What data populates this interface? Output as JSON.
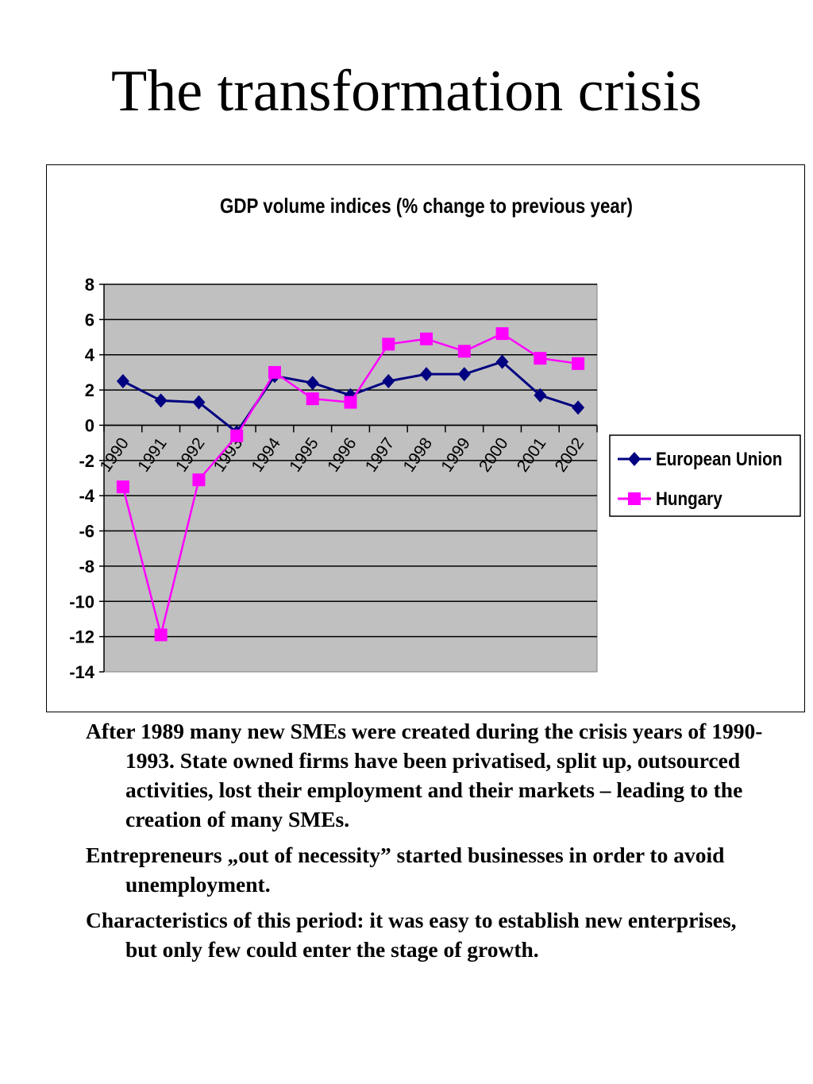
{
  "slide": {
    "title": "The transformation crisis",
    "paragraphs": [
      "After 1989 many new SMEs were created during the crisis years of 1990-1993. State owned firms have been privatised, split up, outsourced activities, lost  their employment and their markets – leading to the creation of many SMEs.",
      "Entrepreneurs „out of necessity” started businesses in order to avoid unemployment.",
      "Characteristics of this period: it was easy to establish new enterprises, but only few could enter the stage of growth."
    ]
  },
  "chart_data": {
    "type": "line",
    "title": "GDP volume indices (% change to previous year)",
    "xlabel": "",
    "ylabel": "",
    "categories": [
      "1990",
      "1991",
      "1992",
      "1993",
      "1994",
      "1995",
      "1996",
      "1997",
      "1998",
      "1999",
      "2000",
      "2001",
      "2002"
    ],
    "series": [
      {
        "name": "European Union",
        "color": "#000080",
        "marker": "diamond",
        "values": [
          2.5,
          1.4,
          1.3,
          -0.4,
          2.8,
          2.4,
          1.7,
          2.5,
          2.9,
          2.9,
          3.6,
          1.7,
          1.0
        ]
      },
      {
        "name": "Hungary",
        "color": "#FF00FF",
        "marker": "square",
        "values": [
          -3.5,
          -11.9,
          -3.1,
          -0.6,
          3.0,
          1.5,
          1.3,
          4.6,
          4.9,
          4.2,
          5.2,
          3.8,
          3.5
        ]
      }
    ],
    "ylim": [
      -14,
      8
    ],
    "yticks": [
      8,
      6,
      4,
      2,
      0,
      -2,
      -4,
      -6,
      -8,
      -10,
      -12,
      -14
    ],
    "plot_background": "#C0C0C0",
    "grid": true,
    "legend_position": "right"
  }
}
